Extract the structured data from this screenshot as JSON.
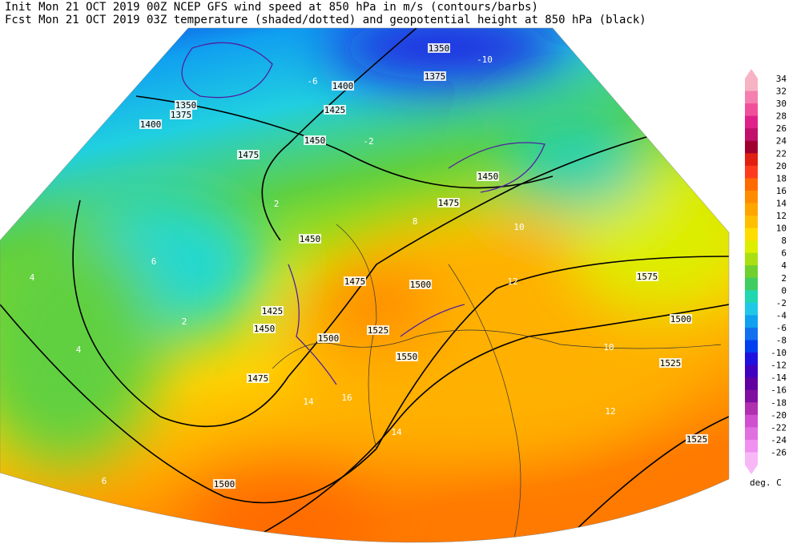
{
  "header": {
    "line1": "Init  Mon 21 OCT 2019 00Z  NCEP GFS wind speed at 850 hPa in m/s (contours/barbs)",
    "line2": "Fcst Mon 21 OCT 2019 03Z  temperature (shaded/dotted) and geopotential height at 850 hPa (black)"
  },
  "colorbar": {
    "unit": "deg. C",
    "levels": [
      34,
      32,
      30,
      28,
      26,
      24,
      22,
      20,
      18,
      16,
      14,
      12,
      10,
      8,
      6,
      4,
      2,
      0,
      -2,
      -4,
      -6,
      -8,
      -10,
      -12,
      -14,
      -16,
      -18,
      -20,
      -22,
      -24,
      -26
    ],
    "colors": [
      "#f7b3c4",
      "#f57fb0",
      "#f0509b",
      "#e0208a",
      "#c0106c",
      "#a00030",
      "#e02010",
      "#ff3b1e",
      "#ff6a00",
      "#ff8c00",
      "#ffa500",
      "#ffbf00",
      "#ffdd00",
      "#ddee00",
      "#aae010",
      "#70d030",
      "#40cc60",
      "#20d8b0",
      "#20c8e8",
      "#10a0f0",
      "#1070f0",
      "#0040f0",
      "#2010e0",
      "#4000c0",
      "#6000a0",
      "#8010a0",
      "#b030b0",
      "#d050d0",
      "#e070e0",
      "#f090f0",
      "#f8b8f8"
    ]
  },
  "map": {
    "height_labels": [
      "1350",
      "1375",
      "1400",
      "1425",
      "1450",
      "1475",
      "1475",
      "1450",
      "1475",
      "1500",
      "1425",
      "1450",
      "1500",
      "1525",
      "1550",
      "1475",
      "1500",
      "1575",
      "1500",
      "1525",
      "1525",
      "1350",
      "1375",
      "1400",
      "1450"
    ],
    "temperature_labels": [
      "-10",
      "-6",
      "-2",
      "2",
      "4",
      "6",
      "8",
      "10",
      "12",
      "14",
      "16",
      "12",
      "14",
      "6",
      "2",
      "4",
      "10"
    ]
  }
}
